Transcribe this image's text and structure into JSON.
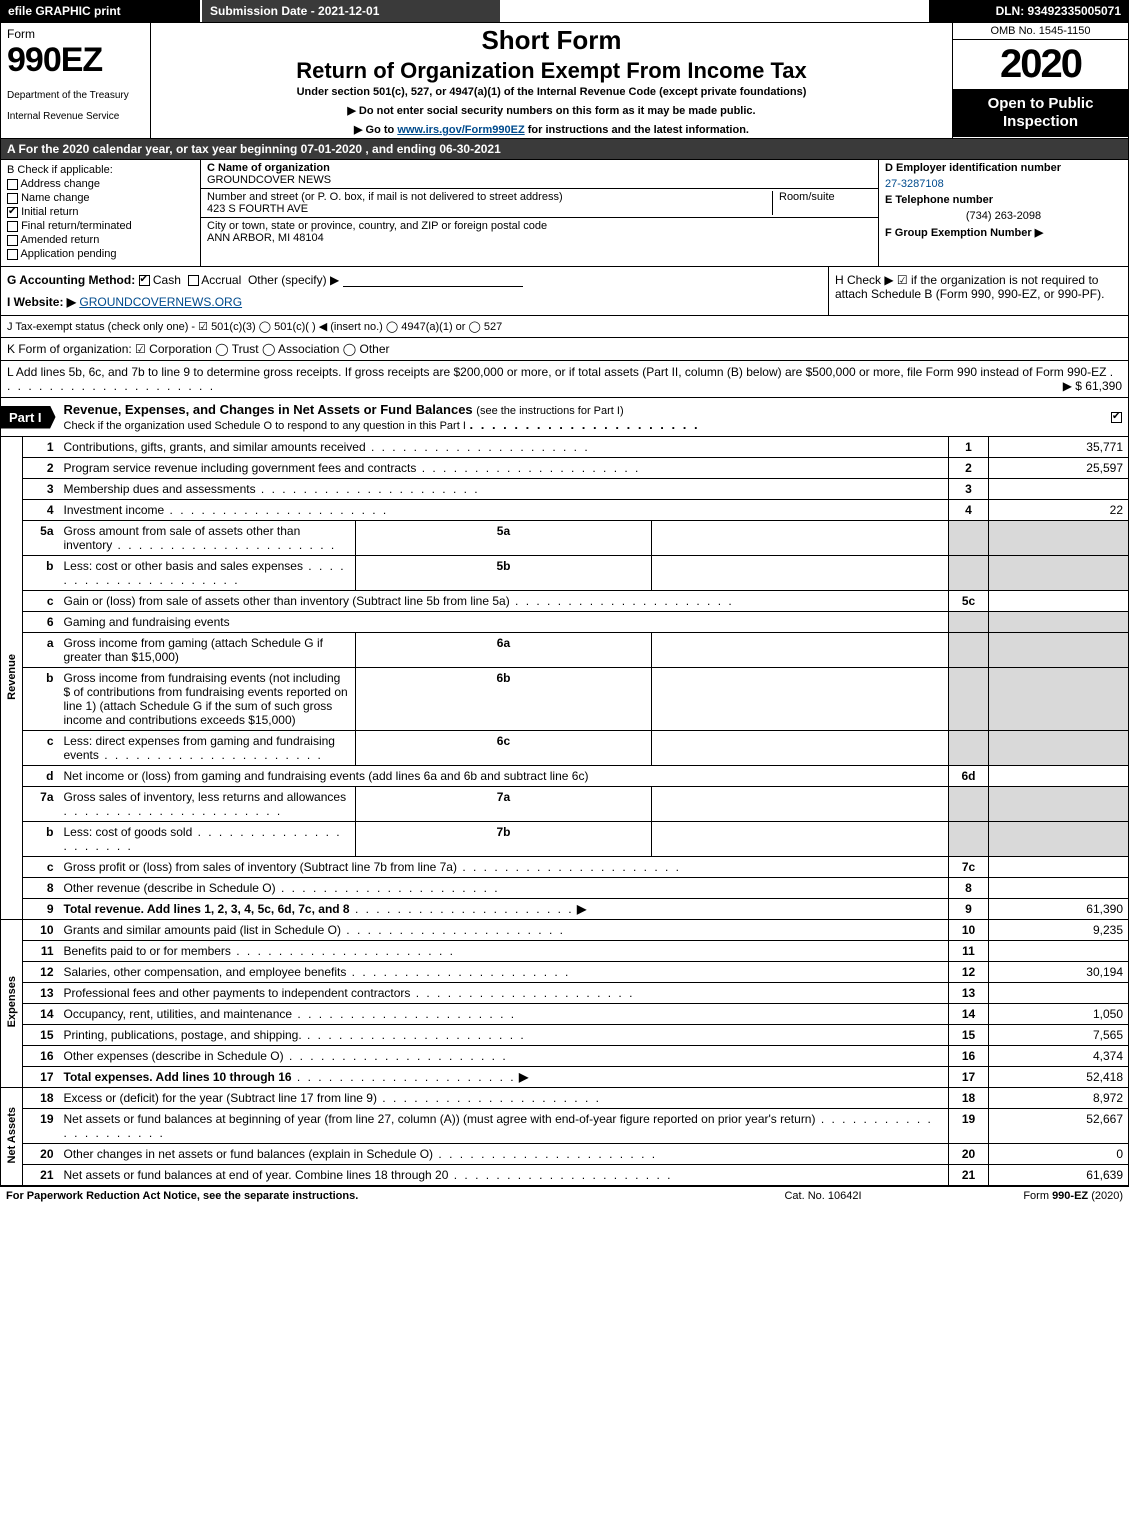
{
  "topbar": {
    "efile": "efile GRAPHIC print",
    "submission": "Submission Date - 2021-12-01",
    "dln": "DLN: 93492335005071"
  },
  "header": {
    "form_word": "Form",
    "form_number": "990EZ",
    "dept": "Department of the Treasury",
    "irs": "Internal Revenue Service",
    "short_form": "Short Form",
    "return_title": "Return of Organization Exempt From Income Tax",
    "under": "Under section 501(c), 527, or 4947(a)(1) of the Internal Revenue Code (except private foundations)",
    "note1": "▶ Do not enter social security numbers on this form as it may be made public.",
    "note2_pre": "▶ Go to ",
    "note2_link": "www.irs.gov/Form990EZ",
    "note2_post": " for instructions and the latest information.",
    "omb": "OMB No. 1545-1150",
    "year": "2020",
    "open": "Open to Public Inspection"
  },
  "period": "A For the 2020 calendar year, or tax year beginning 07-01-2020 , and ending 06-30-2021",
  "boxB": {
    "label": "B Check if applicable:",
    "items": [
      "Address change",
      "Name change",
      "Initial return",
      "Final return/terminated",
      "Amended return",
      "Application pending"
    ],
    "checked": [
      false,
      false,
      true,
      false,
      false,
      false
    ]
  },
  "boxC": {
    "name_lbl": "C Name of organization",
    "name_val": "GROUNDCOVER NEWS",
    "addr_lbl": "Number and street (or P. O. box, if mail is not delivered to street address)",
    "addr_val": "423 S FOURTH AVE",
    "room_lbl": "Room/suite",
    "city_lbl": "City or town, state or province, country, and ZIP or foreign postal code",
    "city_val": "ANN ARBOR, MI  48104"
  },
  "boxD": {
    "ein_lbl": "D Employer identification number",
    "ein_val": "27-3287108",
    "tel_lbl": "E Telephone number",
    "tel_val": "(734) 263-2098",
    "grp_lbl": "F Group Exemption Number ▶"
  },
  "lineG": {
    "label": "G Accounting Method:",
    "cash": "Cash",
    "accrual": "Accrual",
    "other": "Other (specify) ▶"
  },
  "lineH": "H  Check ▶ ☑ if the organization is not required to attach Schedule B (Form 990, 990-EZ, or 990-PF).",
  "lineI": {
    "label": "I Website: ▶",
    "val": "GROUNDCOVERNEWS.ORG"
  },
  "lineJ": "J Tax-exempt status (check only one) - ☑ 501(c)(3)  ◯ 501(c)(  ) ◀ (insert no.)  ◯ 4947(a)(1) or  ◯ 527",
  "lineK": "K Form of organization:  ☑ Corporation  ◯ Trust  ◯ Association  ◯ Other",
  "lineL": {
    "text": "L Add lines 5b, 6c, and 7b to line 9 to determine gross receipts. If gross receipts are $200,000 or more, or if total assets (Part II, column (B) below) are $500,000 or more, file Form 990 instead of Form 990-EZ",
    "amount": "▶ $ 61,390"
  },
  "part1": {
    "tag": "Part I",
    "title": "Revenue, Expenses, and Changes in Net Assets or Fund Balances",
    "title_paren": "(see the instructions for Part I)",
    "sub": "Check if the organization used Schedule O to respond to any question in this Part I"
  },
  "sideLabels": {
    "rev": "Revenue",
    "exp": "Expenses",
    "na": "Net Assets"
  },
  "lines": {
    "l1": {
      "n": "1",
      "d": "Contributions, gifts, grants, and similar amounts received",
      "rn": "1",
      "amt": "35,771"
    },
    "l2": {
      "n": "2",
      "d": "Program service revenue including government fees and contracts",
      "rn": "2",
      "amt": "25,597"
    },
    "l3": {
      "n": "3",
      "d": "Membership dues and assessments",
      "rn": "3",
      "amt": ""
    },
    "l4": {
      "n": "4",
      "d": "Investment income",
      "rn": "4",
      "amt": "22"
    },
    "l5a": {
      "n": "5a",
      "d": "Gross amount from sale of assets other than inventory",
      "sub": "5a"
    },
    "l5b": {
      "n": "b",
      "d": "Less: cost or other basis and sales expenses",
      "sub": "5b"
    },
    "l5c": {
      "n": "c",
      "d": "Gain or (loss) from sale of assets other than inventory (Subtract line 5b from line 5a)",
      "rn": "5c",
      "amt": ""
    },
    "l6": {
      "n": "6",
      "d": "Gaming and fundraising events"
    },
    "l6a": {
      "n": "a",
      "d": "Gross income from gaming (attach Schedule G if greater than $15,000)",
      "sub": "6a"
    },
    "l6b": {
      "n": "b",
      "d": "Gross income from fundraising events (not including $                       of contributions from fundraising events reported on line 1) (attach Schedule G if the sum of such gross income and contributions exceeds $15,000)",
      "sub": "6b"
    },
    "l6c": {
      "n": "c",
      "d": "Less: direct expenses from gaming and fundraising events",
      "sub": "6c"
    },
    "l6d": {
      "n": "d",
      "d": "Net income or (loss) from gaming and fundraising events (add lines 6a and 6b and subtract line 6c)",
      "rn": "6d",
      "amt": ""
    },
    "l7a": {
      "n": "7a",
      "d": "Gross sales of inventory, less returns and allowances",
      "sub": "7a"
    },
    "l7b": {
      "n": "b",
      "d": "Less: cost of goods sold",
      "sub": "7b"
    },
    "l7c": {
      "n": "c",
      "d": "Gross profit or (loss) from sales of inventory (Subtract line 7b from line 7a)",
      "rn": "7c",
      "amt": ""
    },
    "l8": {
      "n": "8",
      "d": "Other revenue (describe in Schedule O)",
      "rn": "8",
      "amt": ""
    },
    "l9": {
      "n": "9",
      "d": "Total revenue. Add lines 1, 2, 3, 4, 5c, 6d, 7c, and 8",
      "rn": "9",
      "amt": "61,390"
    },
    "l10": {
      "n": "10",
      "d": "Grants and similar amounts paid (list in Schedule O)",
      "rn": "10",
      "amt": "9,235"
    },
    "l11": {
      "n": "11",
      "d": "Benefits paid to or for members",
      "rn": "11",
      "amt": ""
    },
    "l12": {
      "n": "12",
      "d": "Salaries, other compensation, and employee benefits",
      "rn": "12",
      "amt": "30,194"
    },
    "l13": {
      "n": "13",
      "d": "Professional fees and other payments to independent contractors",
      "rn": "13",
      "amt": ""
    },
    "l14": {
      "n": "14",
      "d": "Occupancy, rent, utilities, and maintenance",
      "rn": "14",
      "amt": "1,050"
    },
    "l15": {
      "n": "15",
      "d": "Printing, publications, postage, and shipping.",
      "rn": "15",
      "amt": "7,565"
    },
    "l16": {
      "n": "16",
      "d": "Other expenses (describe in Schedule O)",
      "rn": "16",
      "amt": "4,374"
    },
    "l17": {
      "n": "17",
      "d": "Total expenses. Add lines 10 through 16",
      "rn": "17",
      "amt": "52,418"
    },
    "l18": {
      "n": "18",
      "d": "Excess or (deficit) for the year (Subtract line 17 from line 9)",
      "rn": "18",
      "amt": "8,972"
    },
    "l19": {
      "n": "19",
      "d": "Net assets or fund balances at beginning of year (from line 27, column (A)) (must agree with end-of-year figure reported on prior year's return)",
      "rn": "19",
      "amt": "52,667"
    },
    "l20": {
      "n": "20",
      "d": "Other changes in net assets or fund balances (explain in Schedule O)",
      "rn": "20",
      "amt": "0"
    },
    "l21": {
      "n": "21",
      "d": "Net assets or fund balances at end of year. Combine lines 18 through 20",
      "rn": "21",
      "amt": "61,639"
    }
  },
  "footer": {
    "left": "For Paperwork Reduction Act Notice, see the separate instructions.",
    "center": "Cat. No. 10642I",
    "right_pre": "Form ",
    "right_bold": "990-EZ",
    "right_post": " (2020)"
  },
  "colors": {
    "black": "#000000",
    "darkgrey": "#3a3a3a",
    "lightgrey": "#d9d9d9",
    "link": "#004b8d",
    "white": "#ffffff"
  }
}
